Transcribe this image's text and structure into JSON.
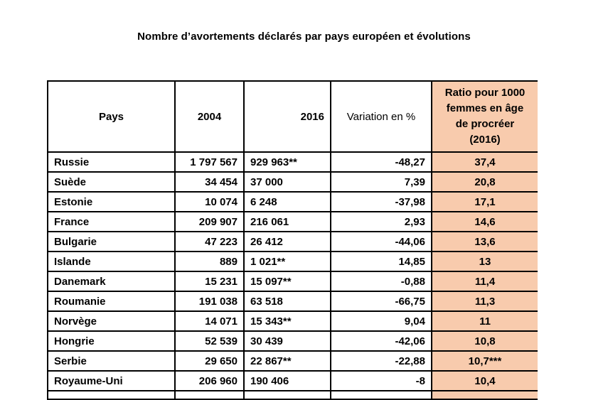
{
  "title": "Nombre d’avortements déclarés par pays européen et évolutions",
  "colors": {
    "highlight_column_bg": "#F8CBAD",
    "border": "#000000",
    "text": "#000000",
    "page_bg": "#FFFFFF"
  },
  "table": {
    "columns": [
      {
        "label": "Pays"
      },
      {
        "label": "2004"
      },
      {
        "label": "2016"
      },
      {
        "label": "Variation en %"
      },
      {
        "label": "Ratio pour 1000\nfemmes en âge\nde procréer\n(2016)"
      }
    ],
    "rows": [
      [
        "Russie",
        "1 797 567",
        "929 963**",
        "-48,27",
        "37,4"
      ],
      [
        "Suède",
        "34 454",
        "37 000",
        "7,39",
        "20,8"
      ],
      [
        "Estonie",
        "10 074",
        "6 248",
        "-37,98",
        "17,1"
      ],
      [
        "France",
        "209 907",
        "216 061",
        "2,93",
        "14,6"
      ],
      [
        "Bulgarie",
        "47 223",
        "26 412",
        "-44,06",
        "13,6"
      ],
      [
        "Islande",
        "889",
        "1 021**",
        "14,85",
        "13"
      ],
      [
        "Danemark",
        "15 231",
        "15 097**",
        "-0,88",
        "11,4"
      ],
      [
        "Roumanie",
        "191 038",
        "63 518",
        "-66,75",
        "11,3"
      ],
      [
        "Norvège",
        "14 071",
        "15 343**",
        "9,04",
        "11"
      ],
      [
        "Hongrie",
        "52 539",
        "30 439",
        "-42,06",
        "10,8"
      ],
      [
        "Serbie",
        "29 650",
        "22 867**",
        "-22,88",
        "10,7***"
      ],
      [
        "Royaume-Uni",
        "206 960",
        "190 406",
        "-8",
        "10,4"
      ]
    ]
  },
  "chart_data": {
    "type": "table",
    "title": "Nombre d’avortements déclarés par pays européen et évolutions",
    "columns": [
      "Pays",
      "2004",
      "2016",
      "Variation en %",
      "Ratio pour 1000 femmes en âge de procréer (2016)"
    ],
    "rows": [
      [
        "Russie",
        1797567,
        "929 963**",
        -48.27,
        37.4
      ],
      [
        "Suède",
        34454,
        37000,
        7.39,
        20.8
      ],
      [
        "Estonie",
        10074,
        6248,
        -37.98,
        17.1
      ],
      [
        "France",
        209907,
        216061,
        2.93,
        14.6
      ],
      [
        "Bulgarie",
        47223,
        26412,
        -44.06,
        13.6
      ],
      [
        "Islande",
        889,
        "1 021**",
        14.85,
        13
      ],
      [
        "Danemark",
        15231,
        "15 097**",
        -0.88,
        11.4
      ],
      [
        "Roumanie",
        191038,
        63518,
        -66.75,
        11.3
      ],
      [
        "Norvège",
        14071,
        "15 343**",
        9.04,
        11
      ],
      [
        "Hongrie",
        52539,
        30439,
        -42.06,
        10.8
      ],
      [
        "Serbie",
        29650,
        "22 867**",
        -22.88,
        "10,7***"
      ],
      [
        "Royaume-Uni",
        206960,
        190406,
        -8,
        10.4
      ]
    ]
  }
}
